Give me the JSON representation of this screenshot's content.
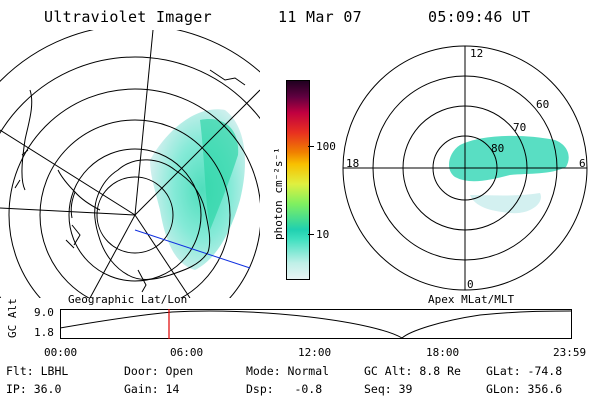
{
  "header": {
    "title": "Ultraviolet Imager",
    "date": "11 Mar 07",
    "time": "05:09:46 UT"
  },
  "left_panel": {
    "label": "Geographic Lat/Lon"
  },
  "right_panel": {
    "label": "Apex MLat/MLT",
    "mlt_labels": {
      "top": "12",
      "left": "18",
      "right": "6",
      "bottom": "0"
    },
    "lat_labels": [
      "60",
      "70",
      "80"
    ]
  },
  "colorbar": {
    "unit_label": "photon cm⁻²s⁻¹",
    "scale": "log",
    "tick_labels": [
      "100",
      "10"
    ],
    "colors": [
      "#e0f0f0",
      "#40e0c0",
      "#a0f040",
      "#f0a000",
      "#e01010",
      "#300030"
    ]
  },
  "altitude_plot": {
    "ylabel": "GC Alt",
    "y_ticks": [
      "9.0",
      "1.8"
    ],
    "x_ticks": [
      "00:00",
      "06:00",
      "12:00",
      "18:00",
      "23:59"
    ],
    "marker_color": "#e00000"
  },
  "footer": {
    "flt": "Flt: LBHL",
    "ip": "IP: 36.0",
    "door": "Door: Open",
    "gain": "Gain: 14",
    "mode": "Mode: Normal",
    "dsp": "Dsp:   -0.8",
    "gc_alt": "GC Alt: 8.8 Re",
    "seq": "Seq: 39",
    "glat": "GLat: -74.8",
    "glon": "GLon: 356.6"
  }
}
